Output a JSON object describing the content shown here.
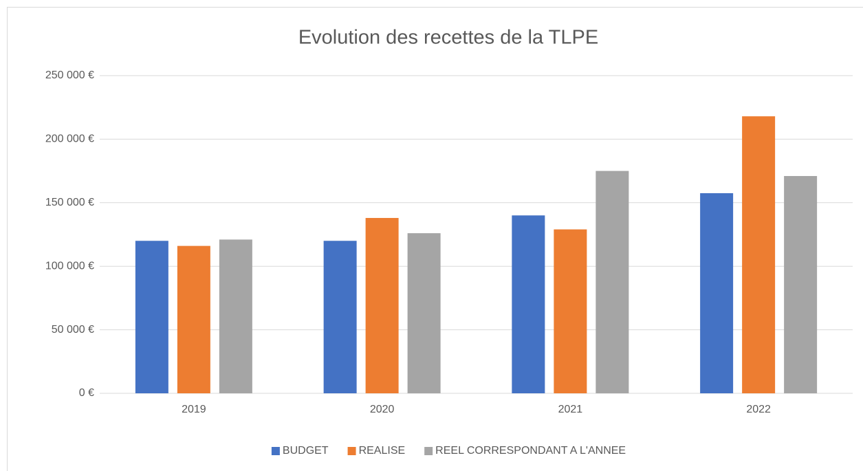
{
  "chart_data": {
    "type": "bar",
    "title": "Evolution des recettes de la TLPE",
    "categories": [
      "2019",
      "2020",
      "2021",
      "2022"
    ],
    "series": [
      {
        "name": "BUDGET",
        "color": "#4472c4",
        "values": [
          120000,
          120000,
          140000,
          157500
        ]
      },
      {
        "name": "REALISE",
        "color": "#ed7d31",
        "values": [
          116000,
          138000,
          129000,
          218000
        ]
      },
      {
        "name": "REEL CORRESPONDANT A L'ANNEE",
        "color": "#a5a5a5",
        "values": [
          121000,
          126000,
          175000,
          171000
        ]
      }
    ],
    "ylim": [
      0,
      250000
    ],
    "yticks": [
      {
        "value": 0,
        "label": "0 €"
      },
      {
        "value": 50000,
        "label": "50 000 €"
      },
      {
        "value": 100000,
        "label": "100 000 €"
      },
      {
        "value": 150000,
        "label": "150 000 €"
      },
      {
        "value": 200000,
        "label": "200 000 €"
      },
      {
        "value": 250000,
        "label": "250 000 €"
      }
    ],
    "grid": true,
    "legend": "bottom"
  }
}
